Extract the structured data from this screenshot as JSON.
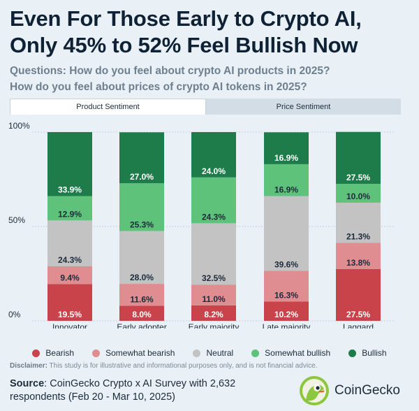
{
  "title": "Even For Those Early to Crypto AI, Only 45% to 52% Feel Bullish Now",
  "questions": [
    "Questions: How do you feel about crypto AI products in 2025?",
    "How do you feel about prices of crypto AI tokens in 2025?"
  ],
  "tabs": [
    {
      "label": "Product Sentiment",
      "active": true
    },
    {
      "label": "Price Sentiment",
      "active": false
    }
  ],
  "colors": {
    "Bearish": "#c9444a",
    "Somewhat bearish": "#e08d91",
    "Neutral": "#c3c3c3",
    "Somewhat bullish": "#5fc27a",
    "Bullish": "#1e7c4a"
  },
  "chart_data": {
    "type": "bar",
    "stacked": true,
    "categories": [
      "Innovator",
      "Early adopter",
      "Early majority",
      "Late majority",
      "Laggard"
    ],
    "series": [
      {
        "name": "Bearish",
        "values": [
          19.5,
          8.0,
          8.2,
          10.2,
          27.5
        ],
        "labels": [
          "19.5%",
          "8.0%",
          "8.2%",
          "10.2%",
          "27.5%"
        ]
      },
      {
        "name": "Somewhat bearish",
        "values": [
          9.4,
          11.6,
          11.0,
          16.3,
          13.8
        ],
        "labels": [
          "9.4%",
          "11.6%",
          "11.0%",
          "16.3%",
          "13.8%"
        ]
      },
      {
        "name": "Neutral",
        "values": [
          24.3,
          28.0,
          32.5,
          39.6,
          21.3
        ],
        "labels": [
          "24.3%",
          "28.0%",
          "32.5%",
          "39.6%",
          "21.3%"
        ]
      },
      {
        "name": "Somewhat bullish",
        "values": [
          12.9,
          25.3,
          24.3,
          16.9,
          10.0
        ],
        "labels": [
          "12.9%",
          "25.3%",
          "24.3%",
          "16.9%",
          "10.0%"
        ]
      },
      {
        "name": "Bullish",
        "values": [
          33.9,
          27.0,
          24.0,
          16.9,
          27.5
        ],
        "labels": [
          "33.9%",
          "27.0%",
          "24.0%",
          "16.9%",
          "27.5%"
        ]
      }
    ],
    "y_ticks": [
      "0%",
      "50%",
      "100%"
    ],
    "ylim": [
      0,
      100
    ],
    "grid": true,
    "legend_position": "bottom"
  },
  "legend": [
    "Bearish",
    "Somewhat bearish",
    "Neutral",
    "Somewhat bullish",
    "Bullish"
  ],
  "disclaimer": {
    "label": "Disclaimer:",
    "text": " This study is for illustrative and informational purposes only, and is not financial advice."
  },
  "source": {
    "label": "Source",
    "text": ": CoinGecko Crypto x AI Survey with 2,632 respondents (Feb 20 - Mar 10, 2025)"
  },
  "brand": {
    "name": "CoinGecko"
  }
}
